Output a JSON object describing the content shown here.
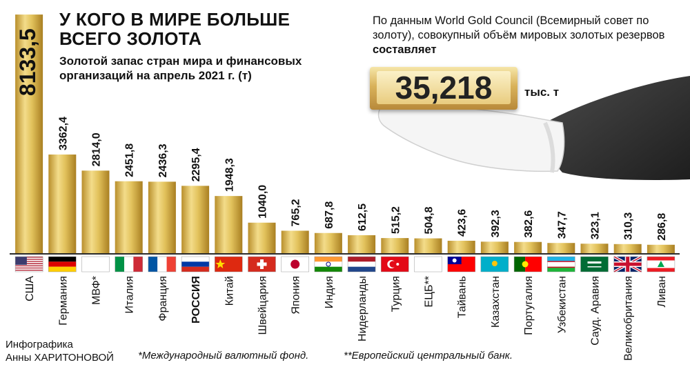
{
  "header": {
    "title": "У КОГО В МИРЕ БОЛЬШЕ ВСЕГО ЗОЛОТА",
    "subtitle": "Золотой запас стран мира и финансовых организаций на апрель 2021 г. (т)"
  },
  "info": {
    "text_before": "По данным World Gold Council (Всемирный совет по золоту), совокупный объём мировых золотых резервов ",
    "text_bold": "составляет",
    "total_value": "35,218",
    "total_unit": "тыс. т"
  },
  "footer": {
    "credit_line1": "Инфографика",
    "credit_line2": "Анны ХАРИТОНОВОЙ",
    "note_imf": "*Международный валютный фонд.",
    "note_ecb": "**Европейский центральный банк."
  },
  "colors": {
    "gold_light": "#f7e9a6",
    "gold_mid": "#e2c25c",
    "gold_dark": "#b98f2c",
    "axis": "#2a2a2a"
  },
  "chart_data": {
    "type": "bar",
    "title": "У КОГО В МИРЕ БОЛЬШЕ ВСЕГО ЗОЛОТА",
    "xlabel": "",
    "ylabel": "",
    "ylim": [
      0,
      8300
    ],
    "grid": false,
    "categories": [
      "США",
      "Германия",
      "МВФ*",
      "Италия",
      "Франция",
      "РОССИЯ",
      "Китай",
      "Швейцария",
      "Япония",
      "Индия",
      "Нидерланды",
      "Турция",
      "ЕЦБ**",
      "Тайвань",
      "Казахстан",
      "Португалия",
      "Узбекистан",
      "Сауд. Аравия",
      "Великобритания",
      "Ливан"
    ],
    "value_labels": [
      "8133,5",
      "3362,4",
      "2814,0",
      "2451,8",
      "2436,3",
      "2295,4",
      "1948,3",
      "1040,0",
      "765,2",
      "687,8",
      "612,5",
      "515,2",
      "504,8",
      "423,6",
      "392,3",
      "382,6",
      "347,7",
      "323,1",
      "310,3",
      "286,8"
    ],
    "values": [
      8133.5,
      3362.4,
      2814.0,
      2451.8,
      2436.3,
      2295.4,
      1948.3,
      1040.0,
      765.2,
      687.8,
      612.5,
      515.2,
      504.8,
      423.6,
      392.3,
      382.6,
      347.7,
      323.1,
      310.3,
      286.8
    ],
    "flags": [
      "us-flag",
      "germany-flag",
      "imf-logo",
      "italy-flag",
      "france-flag",
      "russia-flag",
      "china-flag",
      "switzerland-flag",
      "japan-flag",
      "india-flag",
      "netherlands-flag",
      "turkey-flag",
      "eu-flag",
      "taiwan-flag",
      "kazakhstan-flag",
      "portugal-flag",
      "uzbekistan-flag",
      "saudi-arabia-flag",
      "uk-flag",
      "lebanon-flag"
    ],
    "highlight": "РОССИЯ"
  }
}
